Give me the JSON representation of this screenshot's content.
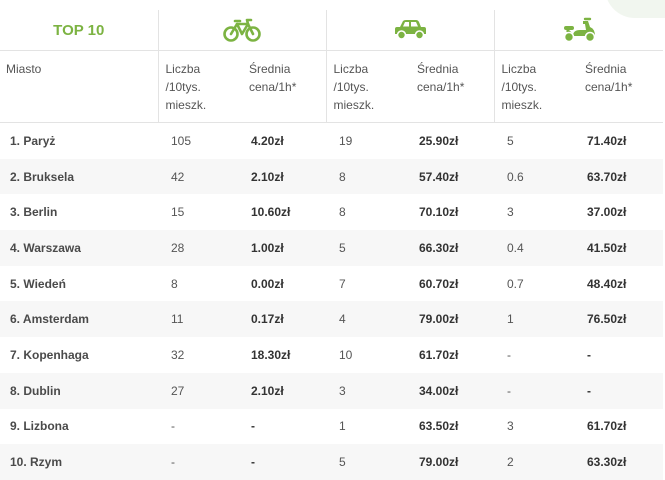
{
  "table": {
    "title": "TOP 10",
    "city_header": "Miasto",
    "count_header_lines": [
      "Liczba",
      "/10tys.",
      "mieszk."
    ],
    "price_header_lines": [
      "Średnia",
      "cena/1h*"
    ],
    "groups": [
      {
        "icon": "bicycle-icon"
      },
      {
        "icon": "car-icon"
      },
      {
        "icon": "scooter-icon"
      }
    ],
    "accent_color": "#7cb342",
    "rows": [
      {
        "city": "1. Paryż",
        "bike_count": "105",
        "bike_price": "4.20zł",
        "car_count": "19",
        "car_price": "25.90zł",
        "scooter_count": "5",
        "scooter_price": "71.40zł"
      },
      {
        "city": "2. Bruksela",
        "bike_count": "42",
        "bike_price": "2.10zł",
        "car_count": "8",
        "car_price": "57.40zł",
        "scooter_count": "0.6",
        "scooter_price": "63.70zł"
      },
      {
        "city": "3. Berlin",
        "bike_count": "15",
        "bike_price": "10.60zł",
        "car_count": "8",
        "car_price": "70.10zł",
        "scooter_count": "3",
        "scooter_price": "37.00zł"
      },
      {
        "city": "4. Warszawa",
        "bike_count": "28",
        "bike_price": "1.00zł",
        "car_count": "5",
        "car_price": "66.30zł",
        "scooter_count": "0.4",
        "scooter_price": "41.50zł"
      },
      {
        "city": "5. Wiedeń",
        "bike_count": "8",
        "bike_price": "0.00zł",
        "car_count": "7",
        "car_price": "60.70zł",
        "scooter_count": "0.7",
        "scooter_price": "48.40zł"
      },
      {
        "city": "6. Amsterdam",
        "bike_count": "11",
        "bike_price": "0.17zł",
        "car_count": "4",
        "car_price": "79.00zł",
        "scooter_count": "1",
        "scooter_price": "76.50zł"
      },
      {
        "city": "7. Kopenhaga",
        "bike_count": "32",
        "bike_price": "18.30zł",
        "car_count": "10",
        "car_price": "61.70zł",
        "scooter_count": "-",
        "scooter_price": "-"
      },
      {
        "city": "8. Dublin",
        "bike_count": "27",
        "bike_price": "2.10zł",
        "car_count": "3",
        "car_price": "34.00zł",
        "scooter_count": "-",
        "scooter_price": "-"
      },
      {
        "city": "9. Lizbona",
        "bike_count": "-",
        "bike_price": "-",
        "car_count": "1",
        "car_price": "63.50zł",
        "scooter_count": "3",
        "scooter_price": "61.70zł"
      },
      {
        "city": "10. Rzym",
        "bike_count": "-",
        "bike_price": "-",
        "car_count": "5",
        "car_price": "79.00zł",
        "scooter_count": "2",
        "scooter_price": "63.30zł"
      }
    ]
  }
}
